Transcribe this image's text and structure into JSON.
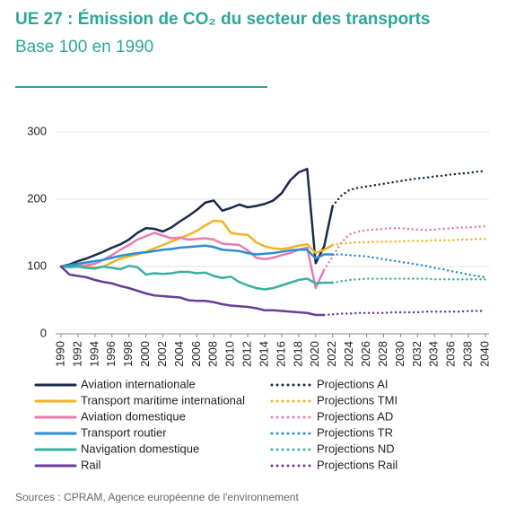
{
  "chart_data": {
    "type": "line",
    "title": "UE 27 : Émission de CO₂ du secteur des transports",
    "subtitle": "Base 100 en 1990",
    "source": "Sources : CPRAM, Agence européenne de l'environnement",
    "x": [
      1990,
      1991,
      1992,
      1993,
      1994,
      1995,
      1996,
      1997,
      1998,
      1999,
      2000,
      2001,
      2002,
      2003,
      2004,
      2005,
      2006,
      2007,
      2008,
      2009,
      2010,
      2011,
      2012,
      2013,
      2014,
      2015,
      2016,
      2017,
      2018,
      2019,
      2020,
      2021,
      2022,
      2023,
      2024,
      2025,
      2026,
      2027,
      2028,
      2029,
      2030,
      2031,
      2032,
      2033,
      2034,
      2035,
      2036,
      2037,
      2038,
      2039,
      2040
    ],
    "xlim": [
      1990,
      2040
    ],
    "xticks": [
      1990,
      1992,
      1994,
      1996,
      1998,
      2000,
      2002,
      2004,
      2006,
      2008,
      2010,
      2012,
      2014,
      2016,
      2018,
      2020,
      2022,
      2024,
      2026,
      2028,
      2030,
      2032,
      2034,
      2036,
      2038,
      2040
    ],
    "ylim": [
      0,
      300
    ],
    "yticks": [
      0,
      100,
      200,
      300
    ],
    "grid": true,
    "series": [
      {
        "name": "Aviation internationale",
        "color": "#1b2a4a",
        "style": "solid",
        "values": [
          100,
          103,
          108,
          112,
          117,
          122,
          128,
          133,
          140,
          150,
          157,
          156,
          152,
          158,
          167,
          175,
          184,
          195,
          198,
          183,
          187,
          192,
          188,
          190,
          193,
          198,
          209,
          228,
          240,
          245,
          105,
          130,
          190,
          null,
          null,
          null,
          null,
          null,
          null,
          null,
          null,
          null,
          null,
          null,
          null,
          null,
          null,
          null,
          null,
          null,
          null
        ]
      },
      {
        "name": "Transport maritime international",
        "color": "#f0b323",
        "style": "solid",
        "values": [
          100,
          101,
          102,
          100,
          98,
          100,
          106,
          112,
          115,
          118,
          122,
          127,
          132,
          137,
          142,
          147,
          153,
          161,
          168,
          167,
          150,
          148,
          147,
          136,
          130,
          127,
          126,
          128,
          131,
          133,
          120,
          125,
          132,
          null,
          null,
          null,
          null,
          null,
          null,
          null,
          null,
          null,
          null,
          null,
          null,
          null,
          null,
          null,
          null,
          null,
          null
        ]
      },
      {
        "name": "Aviation domestique",
        "color": "#e87bb0",
        "style": "solid",
        "values": [
          100,
          101,
          100,
          102,
          104,
          110,
          117,
          125,
          132,
          140,
          145,
          150,
          146,
          142,
          143,
          140,
          141,
          142,
          140,
          134,
          133,
          132,
          124,
          113,
          111,
          113,
          117,
          120,
          125,
          128,
          68,
          95,
          null,
          null,
          null,
          null,
          null,
          null,
          null,
          null,
          null,
          null,
          null,
          null,
          null,
          null,
          null,
          null,
          null,
          null,
          null
        ]
      },
      {
        "name": "Transport routier",
        "color": "#2a8fd0",
        "style": "solid",
        "values": [
          100,
          102,
          104,
          106,
          108,
          110,
          113,
          116,
          118,
          120,
          121,
          123,
          125,
          126,
          128,
          129,
          130,
          131,
          129,
          125,
          124,
          123,
          120,
          118,
          119,
          120,
          122,
          124,
          125,
          125,
          112,
          118,
          118,
          null,
          null,
          null,
          null,
          null,
          null,
          null,
          null,
          null,
          null,
          null,
          null,
          null,
          null,
          null,
          null,
          null,
          null
        ]
      },
      {
        "name": "Navigation domestique",
        "color": "#3ab0a0",
        "style": "solid",
        "values": [
          100,
          99,
          100,
          98,
          97,
          100,
          98,
          96,
          101,
          99,
          88,
          90,
          89,
          90,
          92,
          92,
          90,
          91,
          86,
          83,
          85,
          77,
          72,
          68,
          66,
          68,
          72,
          76,
          80,
          82,
          75,
          76,
          76,
          null,
          null,
          null,
          null,
          null,
          null,
          null,
          null,
          null,
          null,
          null,
          null,
          null,
          null,
          null,
          null,
          null,
          null
        ]
      },
      {
        "name": "Rail",
        "color": "#6a3d9a",
        "style": "solid",
        "values": [
          100,
          88,
          86,
          84,
          80,
          77,
          75,
          71,
          68,
          64,
          60,
          57,
          56,
          55,
          54,
          50,
          49,
          49,
          47,
          44,
          42,
          41,
          40,
          38,
          35,
          35,
          34,
          33,
          32,
          31,
          28,
          28,
          null,
          null,
          null,
          null,
          null,
          null,
          null,
          null,
          null,
          null,
          null,
          null,
          null,
          null,
          null,
          null,
          null,
          null,
          null
        ]
      },
      {
        "name": "Projections AI",
        "color": "#1b2a4a",
        "style": "dotted",
        "values": [
          null,
          null,
          null,
          null,
          null,
          null,
          null,
          null,
          null,
          null,
          null,
          null,
          null,
          null,
          null,
          null,
          null,
          null,
          null,
          null,
          null,
          null,
          null,
          null,
          null,
          null,
          null,
          null,
          null,
          null,
          null,
          null,
          190,
          205,
          214,
          217,
          219,
          221,
          223,
          225,
          227,
          229,
          231,
          232,
          234,
          235,
          237,
          238,
          239,
          241,
          242
        ]
      },
      {
        "name": "Projections TMI",
        "color": "#f0b323",
        "style": "dotted",
        "values": [
          null,
          null,
          null,
          null,
          null,
          null,
          null,
          null,
          null,
          null,
          null,
          null,
          null,
          null,
          null,
          null,
          null,
          null,
          null,
          null,
          null,
          null,
          null,
          null,
          null,
          null,
          null,
          null,
          null,
          null,
          null,
          null,
          132,
          134,
          135,
          136,
          136,
          137,
          137,
          137,
          137,
          138,
          138,
          138,
          139,
          139,
          139,
          140,
          140,
          141,
          141
        ]
      },
      {
        "name": "Projections AD",
        "color": "#e87bb0",
        "style": "dotted",
        "values": [
          null,
          null,
          null,
          null,
          null,
          null,
          null,
          null,
          null,
          null,
          null,
          null,
          null,
          null,
          null,
          null,
          null,
          null,
          null,
          null,
          null,
          null,
          null,
          null,
          null,
          null,
          null,
          null,
          null,
          null,
          null,
          95,
          115,
          135,
          148,
          152,
          154,
          155,
          156,
          157,
          157,
          156,
          155,
          154,
          155,
          156,
          157,
          158,
          158,
          159,
          160
        ]
      },
      {
        "name": "Projections TR",
        "color": "#2a8fd0",
        "style": "dotted",
        "values": [
          null,
          null,
          null,
          null,
          null,
          null,
          null,
          null,
          null,
          null,
          null,
          null,
          null,
          null,
          null,
          null,
          null,
          null,
          null,
          null,
          null,
          null,
          null,
          null,
          null,
          null,
          null,
          null,
          null,
          null,
          null,
          null,
          118,
          118,
          117,
          116,
          115,
          113,
          111,
          109,
          107,
          105,
          103,
          101,
          98,
          96,
          93,
          91,
          88,
          86,
          84
        ]
      },
      {
        "name": "Projections ND",
        "color": "#3ab0a0",
        "style": "dotted",
        "values": [
          null,
          null,
          null,
          null,
          null,
          null,
          null,
          null,
          null,
          null,
          null,
          null,
          null,
          null,
          null,
          null,
          null,
          null,
          null,
          null,
          null,
          null,
          null,
          null,
          null,
          null,
          null,
          null,
          null,
          null,
          null,
          null,
          76,
          78,
          80,
          81,
          82,
          82,
          82,
          82,
          82,
          82,
          82,
          82,
          81,
          81,
          81,
          81,
          81,
          81,
          81
        ]
      },
      {
        "name": "Projections Rail",
        "color": "#6a3d9a",
        "style": "dotted",
        "values": [
          null,
          null,
          null,
          null,
          null,
          null,
          null,
          null,
          null,
          null,
          null,
          null,
          null,
          null,
          null,
          null,
          null,
          null,
          null,
          null,
          null,
          null,
          null,
          null,
          null,
          null,
          null,
          null,
          null,
          null,
          null,
          28,
          29,
          30,
          30,
          31,
          31,
          31,
          31,
          32,
          32,
          32,
          32,
          33,
          33,
          33,
          33,
          33,
          34,
          34,
          34
        ]
      }
    ]
  }
}
